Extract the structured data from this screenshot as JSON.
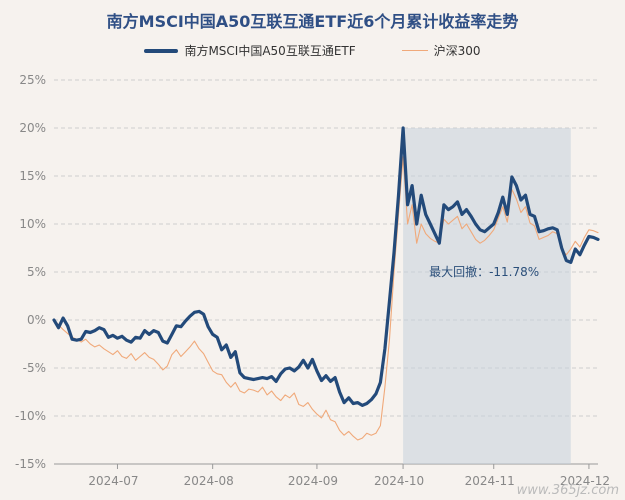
{
  "chart_data": {
    "type": "line",
    "title": "南方MSCI中国A50互联互通ETF近6个月累计收益率走势",
    "legend": "top",
    "ylim": [
      -15,
      25
    ],
    "yticks": [
      "25%",
      "20%",
      "15%",
      "10%",
      "5%",
      "0%",
      "-5%",
      "-10%",
      "-15%"
    ],
    "xticks": [
      "2024-07",
      "2024-08",
      "2024-09",
      "2024-10",
      "2024-11",
      "2024-12"
    ],
    "grid": true,
    "series": [
      {
        "name": "南方MSCI中国A50互联互通ETF",
        "color": "#234a7a",
        "values": [
          0.0,
          -0.8,
          0.2,
          -0.6,
          -2.0,
          -2.1,
          -2.0,
          -1.2,
          -1.3,
          -1.1,
          -0.8,
          -1.0,
          -1.8,
          -1.6,
          -1.9,
          -1.7,
          -2.1,
          -2.3,
          -1.8,
          -1.9,
          -1.1,
          -1.5,
          -1.1,
          -1.3,
          -2.2,
          -2.4,
          -1.5,
          -0.6,
          -0.7,
          -0.1,
          0.4,
          0.8,
          0.9,
          0.6,
          -0.7,
          -1.5,
          -1.8,
          -3.1,
          -2.6,
          -3.9,
          -3.3,
          -5.5,
          -6.0,
          -6.1,
          -6.2,
          -6.1,
          -6.0,
          -6.1,
          -5.9,
          -6.4,
          -5.6,
          -5.1,
          -5.0,
          -5.3,
          -4.9,
          -4.2,
          -5.0,
          -4.1,
          -5.3,
          -6.3,
          -5.8,
          -6.4,
          -6.0,
          -7.5,
          -8.6,
          -8.1,
          -8.7,
          -8.6,
          -8.9,
          -8.7,
          -8.3,
          -7.7,
          -6.5,
          -3.0,
          2.0,
          7.0,
          13.0,
          20.0,
          12.0,
          14.0,
          10.0,
          13.0,
          11.0,
          10.0,
          9.0,
          8.0,
          12.0,
          11.5,
          11.8,
          12.3,
          11.0,
          11.5,
          10.8,
          10.0,
          9.4,
          9.2,
          9.6,
          10.0,
          11.2,
          12.8,
          11.0,
          14.9,
          14.0,
          12.5,
          13.0,
          11.0,
          10.8,
          9.2,
          9.3,
          9.5,
          9.6,
          9.4,
          7.5,
          6.2,
          6.0,
          7.4,
          6.8,
          7.8,
          8.7,
          8.6,
          8.4
        ]
      },
      {
        "name": "沪深300",
        "color": "#f0a97a",
        "values": [
          0.0,
          -0.5,
          -1.0,
          -1.4,
          -1.8,
          -2.0,
          -2.3,
          -2.0,
          -2.5,
          -2.8,
          -2.6,
          -3.0,
          -3.3,
          -3.6,
          -3.2,
          -3.8,
          -4.0,
          -3.5,
          -4.2,
          -3.8,
          -3.4,
          -3.9,
          -4.1,
          -4.6,
          -5.2,
          -4.8,
          -3.6,
          -3.1,
          -3.8,
          -3.3,
          -2.8,
          -2.2,
          -3.0,
          -3.5,
          -4.4,
          -5.3,
          -5.6,
          -5.7,
          -6.5,
          -7.0,
          -6.5,
          -7.4,
          -7.6,
          -7.2,
          -7.3,
          -7.5,
          -7.0,
          -7.8,
          -7.4,
          -8.0,
          -8.4,
          -7.8,
          -8.1,
          -7.6,
          -8.8,
          -9.0,
          -8.6,
          -9.3,
          -9.8,
          -10.2,
          -9.4,
          -10.4,
          -10.6,
          -11.5,
          -12.0,
          -11.6,
          -12.1,
          -12.5,
          -12.3,
          -11.8,
          -12.0,
          -11.8,
          -11.0,
          -7.0,
          -2.0,
          5.0,
          11.0,
          17.0,
          10.0,
          12.0,
          8.0,
          10.0,
          9.0,
          8.5,
          8.2,
          8.0,
          10.5,
          10.0,
          10.4,
          10.8,
          9.5,
          10.0,
          9.2,
          8.4,
          8.0,
          8.3,
          8.8,
          9.4,
          10.6,
          11.8,
          10.2,
          13.6,
          12.6,
          11.2,
          11.8,
          10.1,
          9.8,
          8.4,
          8.6,
          8.8,
          9.2,
          9.0,
          7.3,
          6.8,
          7.4,
          8.2,
          7.6,
          8.6,
          9.4,
          9.3,
          9.1
        ]
      }
    ],
    "max_drawdown": {
      "label": "最大回撤：-11.78%",
      "peak": 20.0,
      "trough": 5.9
    }
  },
  "watermark": "www.365jz.com"
}
